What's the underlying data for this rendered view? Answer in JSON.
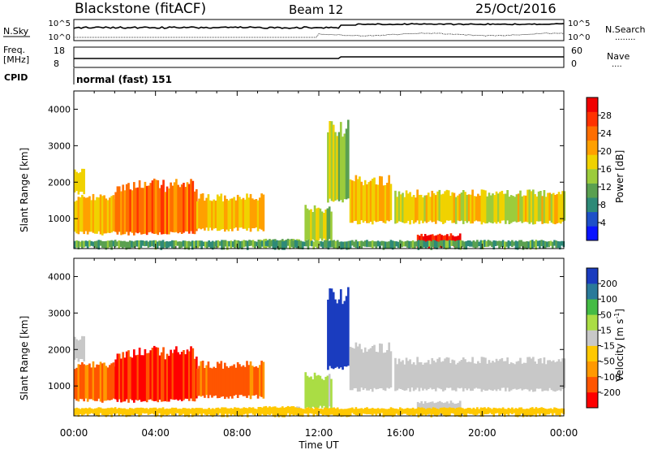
{
  "header": {
    "station": "Blackstone (fitACF)",
    "beam": "Beam 12",
    "date": "25/Oct/2016"
  },
  "sky_panel": {
    "left_label": "N.Sky",
    "right_label": "N.Search",
    "right_dots": "........",
    "ticks": [
      "10^5",
      "10^0"
    ],
    "ticks_right": [
      "10^5",
      "10^0"
    ]
  },
  "freq_panel": {
    "left_label_line1": "Freq.",
    "left_label_line2": "[MHz]",
    "right_label": "Nave",
    "right_dots": "....",
    "ticks_left": [
      "18",
      "8"
    ],
    "ticks_right": [
      "60",
      "0"
    ]
  },
  "cpid": {
    "label": "CPID",
    "value": "normal (fast) 151"
  },
  "time_axis": {
    "label": "Time UT",
    "ticks": [
      "00:00",
      "04:00",
      "08:00",
      "12:00",
      "16:00",
      "20:00",
      "00:00"
    ]
  },
  "colors": {
    "power_scale": [
      "#0a14ff",
      "#1e50c8",
      "#2e8a78",
      "#5aa050",
      "#9ccc3c",
      "#f0d200",
      "#ffa000",
      "#ff6e00",
      "#ff3200",
      "#f00000"
    ],
    "velocity_scale": [
      "#ff0000",
      "#ff5500",
      "#ff9900",
      "#ffc800",
      "#c8c8c8",
      "#aadd44",
      "#44bb44",
      "#2a7a9a",
      "#1a3cbf"
    ]
  },
  "chart_data": [
    {
      "type": "heatmap",
      "panel": "power",
      "ylabel": "Slant Range [km]",
      "xlabel": "Time UT",
      "x_range_hours": [
        0,
        24
      ],
      "ylim": [
        180,
        4500
      ],
      "y_ticks": [
        "4000",
        "3000",
        "2000",
        "1000"
      ],
      "colorbar": {
        "label": "Power [dB]",
        "ticks": [
          "28",
          "24",
          "20",
          "16",
          "12",
          "8",
          "4"
        ],
        "range": [
          0,
          30
        ]
      },
      "regions": [
        {
          "t0": 0.0,
          "t1": 0.5,
          "r0": 1700,
          "r1": 2400,
          "level": 16
        },
        {
          "t0": 0.0,
          "t1": 2.2,
          "r0": 600,
          "r1": 1700,
          "level": 18
        },
        {
          "t0": 2.0,
          "t1": 6.0,
          "r0": 600,
          "r1": 2100,
          "level": 22
        },
        {
          "t0": 6.0,
          "t1": 9.3,
          "r0": 700,
          "r1": 1700,
          "level": 18
        },
        {
          "t0": 9.0,
          "t1": 11.0,
          "r0": 230,
          "r1": 450,
          "level": 12
        },
        {
          "t0": 11.3,
          "t1": 12.6,
          "r0": 400,
          "r1": 1400,
          "level": 14
        },
        {
          "t0": 12.4,
          "t1": 13.4,
          "r0": 1500,
          "r1": 3800,
          "level": 14
        },
        {
          "t0": 13.5,
          "t1": 15.5,
          "r0": 900,
          "r1": 2200,
          "level": 18
        },
        {
          "t0": 15.7,
          "t1": 24.0,
          "r0": 900,
          "r1": 1800,
          "level": 16
        },
        {
          "t0": 16.8,
          "t1": 18.9,
          "r0": 250,
          "r1": 600,
          "level": 28
        },
        {
          "t0": 0.0,
          "t1": 24.0,
          "r0": 200,
          "r1": 420,
          "level": 10
        }
      ]
    },
    {
      "type": "heatmap",
      "panel": "velocity",
      "ylabel": "Slant Range [km]",
      "xlabel": "Time UT",
      "x_range_hours": [
        0,
        24
      ],
      "ylim": [
        180,
        4500
      ],
      "y_ticks": [
        "4000",
        "3000",
        "2000",
        "1000"
      ],
      "colorbar": {
        "label": "Velocity [m s",
        "label_sup": "-1",
        "label_end": "]",
        "ticks": [
          "200",
          "100",
          "50",
          "15",
          "-15",
          "-50",
          "-100",
          "-200"
        ],
        "range": [
          -250,
          250
        ]
      },
      "regions": [
        {
          "t0": 0.0,
          "t1": 0.5,
          "r0": 1700,
          "r1": 2400,
          "level": 0
        },
        {
          "t0": 0.0,
          "t1": 2.2,
          "r0": 600,
          "r1": 1700,
          "level": -140
        },
        {
          "t0": 2.0,
          "t1": 6.0,
          "r0": 600,
          "r1": 2100,
          "level": -200
        },
        {
          "t0": 6.0,
          "t1": 9.3,
          "r0": 700,
          "r1": 1700,
          "level": -150
        },
        {
          "t0": 9.0,
          "t1": 11.0,
          "r0": 230,
          "r1": 450,
          "level": -40
        },
        {
          "t0": 11.3,
          "t1": 12.6,
          "r0": 400,
          "r1": 1400,
          "level": 40
        },
        {
          "t0": 12.4,
          "t1": 13.4,
          "r0": 1500,
          "r1": 3800,
          "level": 230
        },
        {
          "t0": 13.5,
          "t1": 15.5,
          "r0": 900,
          "r1": 2200,
          "level": 5
        },
        {
          "t0": 15.7,
          "t1": 24.0,
          "r0": 900,
          "r1": 1800,
          "level": 0
        },
        {
          "t0": 16.8,
          "t1": 18.9,
          "r0": 250,
          "r1": 600,
          "level": 0
        },
        {
          "t0": 0.0,
          "t1": 24.0,
          "r0": 200,
          "r1": 420,
          "level": -60
        }
      ]
    }
  ]
}
